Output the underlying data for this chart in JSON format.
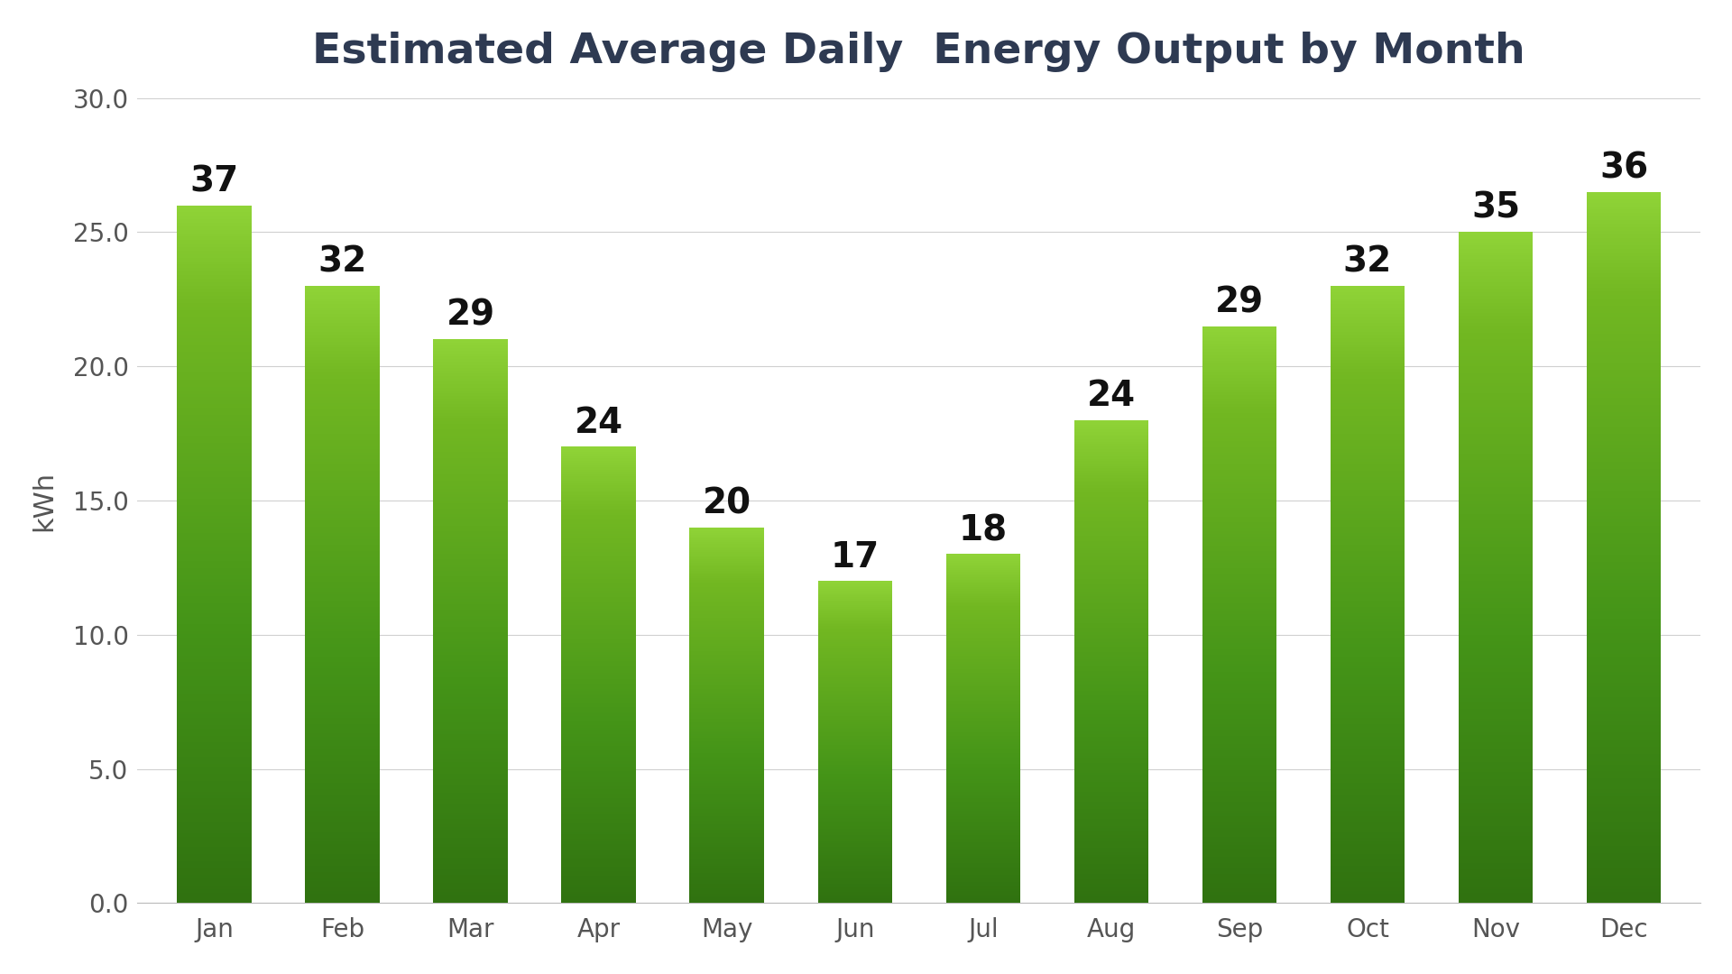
{
  "title": "Estimated Average Daily  Energy Output by Month",
  "months": [
    "Jan",
    "Feb",
    "Mar",
    "Apr",
    "May",
    "Jun",
    "Jul",
    "Aug",
    "Sep",
    "Oct",
    "Nov",
    "Dec"
  ],
  "values": [
    37,
    32,
    29,
    24,
    20,
    17,
    18,
    24,
    29,
    32,
    35,
    36
  ],
  "bar_display_heights": [
    26.0,
    23.0,
    21.0,
    17.0,
    14.0,
    12.0,
    13.0,
    18.0,
    21.5,
    23.0,
    25.0,
    26.5
  ],
  "ylabel": "kWh",
  "ylim": [
    0,
    30
  ],
  "yticks": [
    0.0,
    5.0,
    10.0,
    15.0,
    20.0,
    25.0,
    30.0
  ],
  "background_color": "#ffffff",
  "title_color": "#2e3a52",
  "title_fontsize": 34,
  "axis_label_fontsize": 22,
  "tick_fontsize": 20,
  "bar_label_fontsize": 28,
  "bar_color_top": "#7acc2e",
  "bar_color_mid": "#4aaa20",
  "bar_color_bottom": "#c8e890",
  "grid_color": "#d0d0d0",
  "bar_width": 0.58
}
